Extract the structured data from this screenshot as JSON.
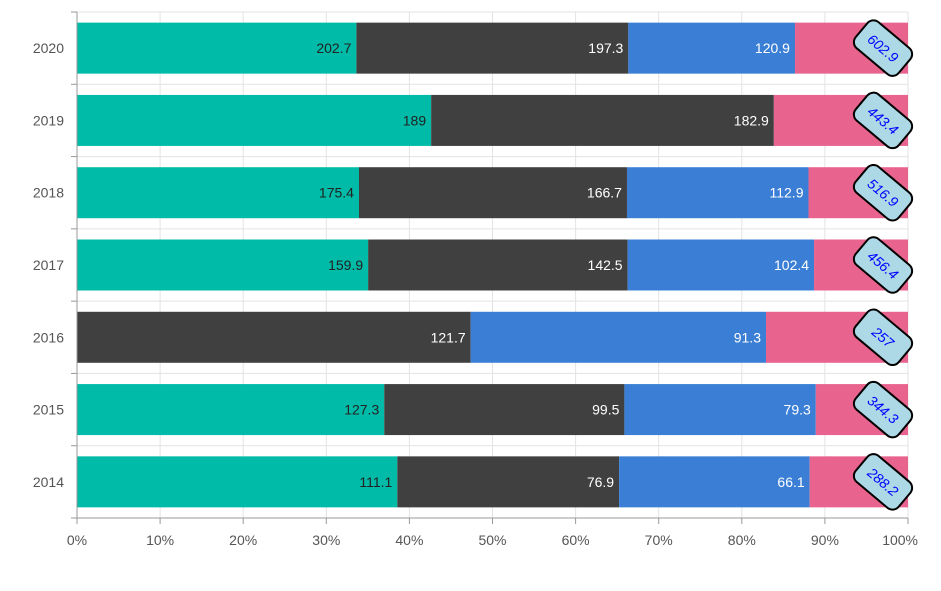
{
  "chart_data": {
    "type": "bar",
    "orientation": "horizontal",
    "stacking": "percent",
    "categories": [
      "2020",
      "2019",
      "2018",
      "2017",
      "2016",
      "2015",
      "2014"
    ],
    "series": [
      {
        "color": "#00bba7",
        "label_color": "#222222",
        "values": [
          202.7,
          189,
          175.4,
          159.9,
          0,
          127.3,
          111.1
        ]
      },
      {
        "color": "#404040",
        "label_color": "#ffffff",
        "values": [
          197.3,
          182.9,
          166.7,
          142.5,
          121.7,
          99.5,
          76.9
        ]
      },
      {
        "color": "#3a7fd5",
        "label_color": "#ffffff",
        "values": [
          120.9,
          0,
          112.9,
          102.4,
          91.3,
          79.3,
          66.1
        ]
      },
      {
        "color": "#e8638e",
        "label_color": "#ffffff",
        "values": [
          82,
          71.6,
          61.9,
          51.6,
          43.9,
          38.2,
          34.1
        ]
      }
    ],
    "totals": [
      "602.9",
      "443.4",
      "516.9",
      "456.4",
      "257",
      "344.3",
      "288.2"
    ],
    "total_label_style": {
      "fill": "#add8e6",
      "stroke": "#000000",
      "text_color": "#0000ff"
    },
    "x_ticks": [
      "0%",
      "10%",
      "20%",
      "30%",
      "40%",
      "50%",
      "60%",
      "70%",
      "80%",
      "90%",
      "100%"
    ],
    "xlim": [
      0,
      100
    ],
    "grid": true,
    "legend": "none",
    "title": "",
    "xlabel": "",
    "ylabel": ""
  }
}
